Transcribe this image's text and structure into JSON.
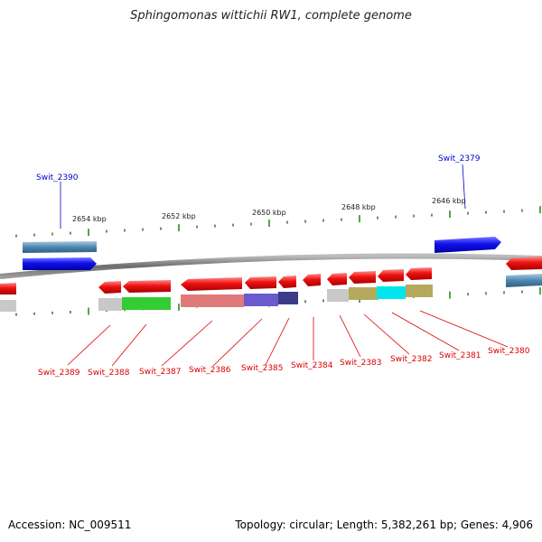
{
  "title": "Sphingomonas wittichii RW1, complete genome",
  "footer": {
    "accession_label": "Accession: ",
    "accession": "NC_009511",
    "topology_label": "Topology: ",
    "topology": "circular",
    "length_label": "; Length: ",
    "length": "5,382,261 bp",
    "genes_label": "; Genes: ",
    "genes": "4,906"
  },
  "scale_labels": [
    "2654 kbp",
    "2652 kbp",
    "2650 kbp",
    "2648 kbp",
    "2646 kbp"
  ],
  "genes_upper": [
    "Swit_2390",
    "Swit_2379"
  ],
  "genes_lower": [
    "Swit_2389",
    "Swit_2388",
    "Swit_2387",
    "Swit_2386",
    "Swit_2385",
    "Swit_2384",
    "Swit_2383",
    "Swit_2382",
    "Swit_2381",
    "Swit_2380"
  ],
  "colors": {
    "backbone": "#888888",
    "tick": "#2e8b22",
    "gene_red": "#ee1111",
    "gene_blue": "#1010ee",
    "gene_steel": "#4f86b0",
    "label_red": "#dd0000",
    "label_blue": "#0000cc",
    "cog_gray": "#c8c8c8",
    "cog_green": "#33cc33",
    "cog_pink": "#e07a7a",
    "cog_purple": "#6a5acd",
    "cog_navy": "#3b3b8a",
    "cog_olive": "#b5a95e",
    "cog_cyan": "#00e5ee"
  }
}
